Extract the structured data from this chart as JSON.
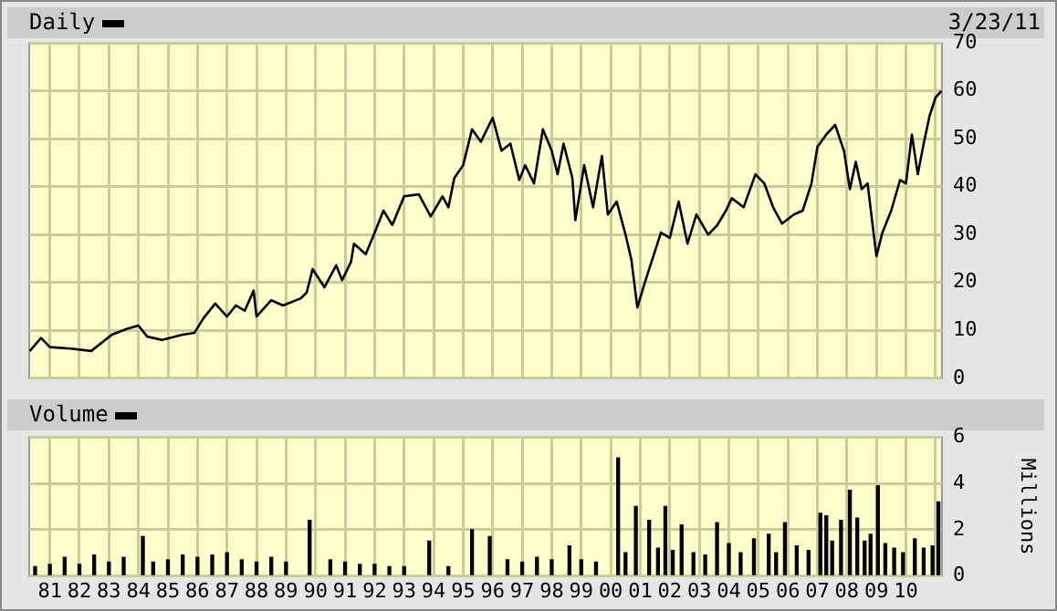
{
  "chart_data": [
    {
      "type": "line",
      "title": "Daily",
      "annotations": [
        "3/23/11"
      ],
      "color": "#000000",
      "grid": true,
      "tick_labels": "y",
      "xlim": [
        1980.3,
        2011.22
      ],
      "xticks": [
        {
          "value": 1981,
          "label": null
        },
        {
          "value": 1982,
          "label": null
        },
        {
          "value": 1983,
          "label": null
        },
        {
          "value": 1984,
          "label": null
        },
        {
          "value": 1985,
          "label": null
        },
        {
          "value": 1986,
          "label": null
        },
        {
          "value": 1987,
          "label": null
        },
        {
          "value": 1988,
          "label": null
        },
        {
          "value": 1989,
          "label": null
        },
        {
          "value": 1990,
          "label": null
        },
        {
          "value": 1991,
          "label": null
        },
        {
          "value": 1992,
          "label": null
        },
        {
          "value": 1993,
          "label": null
        },
        {
          "value": 1994,
          "label": null
        },
        {
          "value": 1995,
          "label": null
        },
        {
          "value": 1996,
          "label": null
        },
        {
          "value": 1997,
          "label": null
        },
        {
          "value": 1998,
          "label": null
        },
        {
          "value": 1999,
          "label": null
        },
        {
          "value": 2000,
          "label": null
        },
        {
          "value": 2001,
          "label": null
        },
        {
          "value": 2002,
          "label": null
        },
        {
          "value": 2003,
          "label": null
        },
        {
          "value": 2004,
          "label": null
        },
        {
          "value": 2005,
          "label": null
        },
        {
          "value": 2006,
          "label": null
        },
        {
          "value": 2007,
          "label": null
        },
        {
          "value": 2008,
          "label": null
        },
        {
          "value": 2009,
          "label": null
        },
        {
          "value": 2010,
          "label": null
        },
        {
          "value": 2011,
          "label": null
        }
      ],
      "ylim": [
        0,
        70
      ],
      "yticks": [
        0,
        10,
        20,
        30,
        40,
        50,
        60,
        70
      ],
      "x": [
        1980.32,
        1980.7,
        1981.0,
        1981.7,
        1982.4,
        1983.1,
        1983.6,
        1984.0,
        1984.3,
        1984.8,
        1985.5,
        1985.9,
        1986.2,
        1986.6,
        1987.0,
        1987.3,
        1987.6,
        1987.9,
        1988.0,
        1988.5,
        1988.9,
        1989.5,
        1989.7,
        1989.9,
        1990.3,
        1990.7,
        1990.9,
        1991.2,
        1991.3,
        1991.7,
        1992.0,
        1992.3,
        1992.6,
        1993.0,
        1993.5,
        1993.9,
        1994.3,
        1994.5,
        1994.7,
        1995.0,
        1995.3,
        1995.6,
        1996.0,
        1996.3,
        1996.6,
        1996.9,
        1997.1,
        1997.4,
        1997.7,
        1998.0,
        1998.2,
        1998.4,
        1998.7,
        1998.8,
        1999.1,
        1999.4,
        1999.7,
        1999.9,
        2000.2,
        2000.5,
        2000.7,
        2000.9,
        2001.2,
        2001.5,
        2001.7,
        2002.0,
        2002.3,
        2002.6,
        2002.9,
        2003.3,
        2003.6,
        2003.9,
        2004.1,
        2004.5,
        2004.9,
        2005.2,
        2005.5,
        2005.8,
        2006.2,
        2006.5,
        2006.8,
        2007.0,
        2007.3,
        2007.6,
        2007.9,
        2008.1,
        2008.3,
        2008.5,
        2008.7,
        2008.9,
        2009.0,
        2009.2,
        2009.5,
        2009.8,
        2010.0,
        2010.2,
        2010.4,
        2010.6,
        2010.8,
        2011.0,
        2011.2
      ],
      "values": [
        5.7,
        8.4,
        6.5,
        6.2,
        5.7,
        9.1,
        10.3,
        11,
        8.7,
        8.0,
        9.1,
        9.5,
        12.5,
        15.6,
        12.9,
        15.2,
        14.1,
        18.3,
        12.9,
        16.3,
        15.2,
        16.7,
        17.9,
        22.8,
        19,
        23.6,
        20.5,
        24.3,
        28.1,
        25.9,
        30.4,
        35,
        32,
        38,
        38.4,
        33.8,
        38,
        35.7,
        41.8,
        44.5,
        52,
        49.4,
        54.4,
        47.5,
        49,
        41.4,
        44.5,
        40.7,
        52,
        47.5,
        42.6,
        49,
        41.8,
        33,
        44.5,
        35.7,
        46.4,
        34.2,
        36.9,
        30,
        24.7,
        14.8,
        20.9,
        26.6,
        30.4,
        29.3,
        36.9,
        28.1,
        34.2,
        30,
        31.9,
        35,
        37.6,
        35.7,
        42.6,
        40.7,
        35.7,
        32.3,
        34.2,
        35,
        40.7,
        48.3,
        50.9,
        52.9,
        47.5,
        39.5,
        45.2,
        39.5,
        40.7,
        30.4,
        25.5,
        30.4,
        35,
        41.4,
        40.7,
        50.9,
        42.6,
        49,
        54.8,
        58.6,
        60
      ]
    },
    {
      "type": "bar",
      "title": "Volume",
      "ylabel": "Millions",
      "color": "#000000",
      "grid": true,
      "xlim": [
        1980.3,
        2011.22
      ],
      "xticks": [
        {
          "value": 1981,
          "label": "81"
        },
        {
          "value": 1982,
          "label": "82"
        },
        {
          "value": 1983,
          "label": "83"
        },
        {
          "value": 1984,
          "label": "84"
        },
        {
          "value": 1985,
          "label": "85"
        },
        {
          "value": 1986,
          "label": "86"
        },
        {
          "value": 1987,
          "label": "87"
        },
        {
          "value": 1988,
          "label": "88"
        },
        {
          "value": 1989,
          "label": "89"
        },
        {
          "value": 1990,
          "label": "90"
        },
        {
          "value": 1991,
          "label": "91"
        },
        {
          "value": 1992,
          "label": "92"
        },
        {
          "value": 1993,
          "label": "93"
        },
        {
          "value": 1994,
          "label": "94"
        },
        {
          "value": 1995,
          "label": "95"
        },
        {
          "value": 1996,
          "label": "96"
        },
        {
          "value": 1997,
          "label": "97"
        },
        {
          "value": 1998,
          "label": "98"
        },
        {
          "value": 1999,
          "label": "99"
        },
        {
          "value": 2000,
          "label": "00"
        },
        {
          "value": 2001,
          "label": "01"
        },
        {
          "value": 2002,
          "label": "02"
        },
        {
          "value": 2003,
          "label": "03"
        },
        {
          "value": 2004,
          "label": "04"
        },
        {
          "value": 2005,
          "label": "05"
        },
        {
          "value": 2006,
          "label": "06"
        },
        {
          "value": 2007,
          "label": "07"
        },
        {
          "value": 2008,
          "label": "08"
        },
        {
          "value": 2009,
          "label": "09"
        },
        {
          "value": 2010,
          "label": "10"
        },
        {
          "value": 2011,
          "label": null
        }
      ],
      "ylim": [
        0,
        6
      ],
      "yticks": [
        0,
        2,
        4,
        6
      ],
      "x": [
        1980.5,
        1981,
        1981.5,
        1982,
        1982.5,
        1983,
        1983.5,
        1984.15,
        1984.5,
        1985,
        1985.5,
        1986,
        1986.5,
        1987,
        1987.5,
        1988,
        1988.5,
        1989,
        1989.8,
        1990.5,
        1991,
        1991.5,
        1992,
        1992.5,
        1993,
        1993.85,
        1994.5,
        1995.3,
        1995.9,
        1996.5,
        1997,
        1997.5,
        1998,
        1998.6,
        1999,
        1999.5,
        2000.25,
        2000.5,
        2000.85,
        2001.3,
        2001.6,
        2001.85,
        2002.1,
        2002.4,
        2002.8,
        2003.2,
        2003.6,
        2004,
        2004.4,
        2004.85,
        2005.35,
        2005.6,
        2005.9,
        2006.3,
        2006.7,
        2007.1,
        2007.3,
        2007.5,
        2007.8,
        2008.1,
        2008.35,
        2008.6,
        2008.8,
        2009.05,
        2009.3,
        2009.6,
        2009.9,
        2010.3,
        2010.6,
        2010.9,
        2011.1
      ],
      "values": [
        0.4,
        0.5,
        0.8,
        0.5,
        0.9,
        0.6,
        0.8,
        1.7,
        0.6,
        0.7,
        0.9,
        0.8,
        0.9,
        1.0,
        0.7,
        0.6,
        0.8,
        0.6,
        2.4,
        0.7,
        0.6,
        0.5,
        0.5,
        0.4,
        0.4,
        1.5,
        0.4,
        2.0,
        1.7,
        0.7,
        0.6,
        0.8,
        0.7,
        1.3,
        0.7,
        0.6,
        5.1,
        1.0,
        3.0,
        2.4,
        1.2,
        3.0,
        1.1,
        2.2,
        1.0,
        0.9,
        2.3,
        1.4,
        1.0,
        1.6,
        1.8,
        1.0,
        2.3,
        1.3,
        1.1,
        2.7,
        2.6,
        1.5,
        2.4,
        3.7,
        2.5,
        1.5,
        1.8,
        3.9,
        1.4,
        1.2,
        1.0,
        1.6,
        1.2,
        1.3,
        3.2
      ]
    }
  ]
}
